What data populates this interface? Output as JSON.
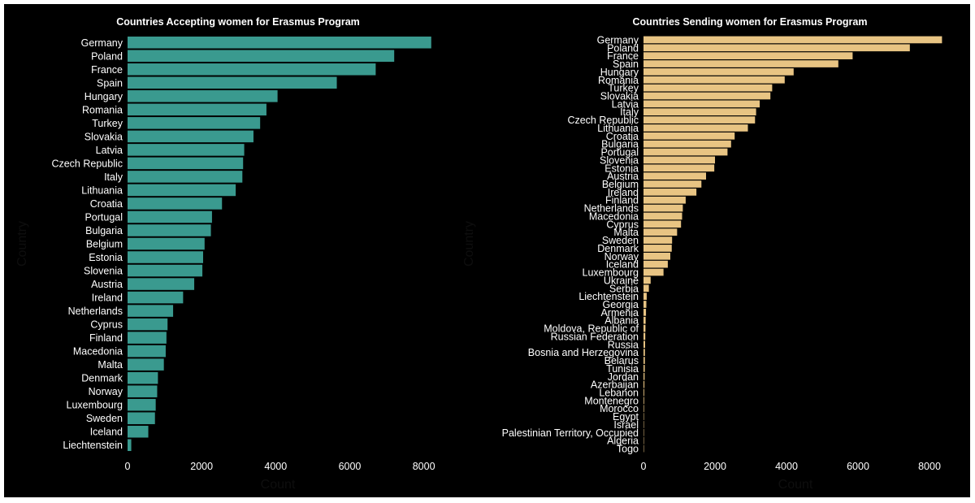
{
  "chart_data": [
    {
      "type": "bar",
      "orientation": "horizontal",
      "title": "Countries Accepting women for Erasmus Program",
      "xlabel": "Count",
      "ylabel": "Country",
      "bar_color": "#3a9a8f",
      "xlim": [
        0,
        8600
      ],
      "xticks": [
        0,
        2000,
        4000,
        6000,
        8000
      ],
      "grid": false,
      "categories": [
        "Germany",
        "Poland",
        "France",
        "Spain",
        "Hungary",
        "Romania",
        "Turkey",
        "Slovakia",
        "Latvia",
        "Czech Republic",
        "Italy",
        "Lithuania",
        "Croatia",
        "Portugal",
        "Bulgaria",
        "Belgium",
        "Estonia",
        "Slovenia",
        "Austria",
        "Ireland",
        "Netherlands",
        "Cyprus",
        "Finland",
        "Macedonia",
        "Malta",
        "Denmark",
        "Norway",
        "Luxembourg",
        "Sweden",
        "Iceland",
        "Liechtenstein"
      ],
      "values": [
        8200,
        7200,
        6700,
        5650,
        4050,
        3750,
        3580,
        3400,
        3150,
        3120,
        3100,
        2920,
        2550,
        2280,
        2250,
        2080,
        2040,
        2020,
        1800,
        1500,
        1230,
        1080,
        1050,
        1030,
        980,
        820,
        800,
        760,
        740,
        560,
        100
      ]
    },
    {
      "type": "bar",
      "orientation": "horizontal",
      "title": "Countries Sending women for Erasmus Program",
      "xlabel": "Count",
      "ylabel": "Country",
      "bar_color": "#e8c483",
      "xlim": [
        0,
        8500
      ],
      "xticks": [
        0,
        2000,
        4000,
        6000,
        8000
      ],
      "grid": false,
      "categories": [
        "Germany",
        "Poland",
        "France",
        "Spain",
        "Hungary",
        "Romania",
        "Turkey",
        "Slovakia",
        "Latvia",
        "Italy",
        "Czech Republic",
        "Lithuania",
        "Croatia",
        "Bulgaria",
        "Portugal",
        "Slovenia",
        "Estonia",
        "Austria",
        "Belgium",
        "Ireland",
        "Finland",
        "Netherlands",
        "Macedonia",
        "Cyprus",
        "Malta",
        "Sweden",
        "Denmark",
        "Norway",
        "Iceland",
        "Luxembourg",
        "Ukraine",
        "Serbia",
        "Liechtenstein",
        "Georgia",
        "Armenia",
        "Albania",
        "Moldova, Republic of",
        "Russian Federation",
        "Russia",
        "Bosnia and Herzegovina",
        "Belarus",
        "Tunisia",
        "Jordan",
        "Azerbaijan",
        "Lebanon",
        "Montenegro",
        "Morocco",
        "Egypt",
        "Israel",
        "Palestinian Territory, Occupied",
        "Algeria",
        "Togo"
      ],
      "values": [
        8350,
        7450,
        5850,
        5450,
        4200,
        3950,
        3600,
        3550,
        3250,
        3150,
        3120,
        2920,
        2550,
        2450,
        2350,
        2000,
        1980,
        1750,
        1620,
        1480,
        1180,
        1100,
        1080,
        1050,
        940,
        800,
        790,
        750,
        680,
        560,
        200,
        150,
        90,
        80,
        70,
        60,
        55,
        50,
        45,
        40,
        38,
        35,
        30,
        25,
        20,
        18,
        15,
        12,
        10,
        5,
        3,
        2
      ]
    }
  ]
}
